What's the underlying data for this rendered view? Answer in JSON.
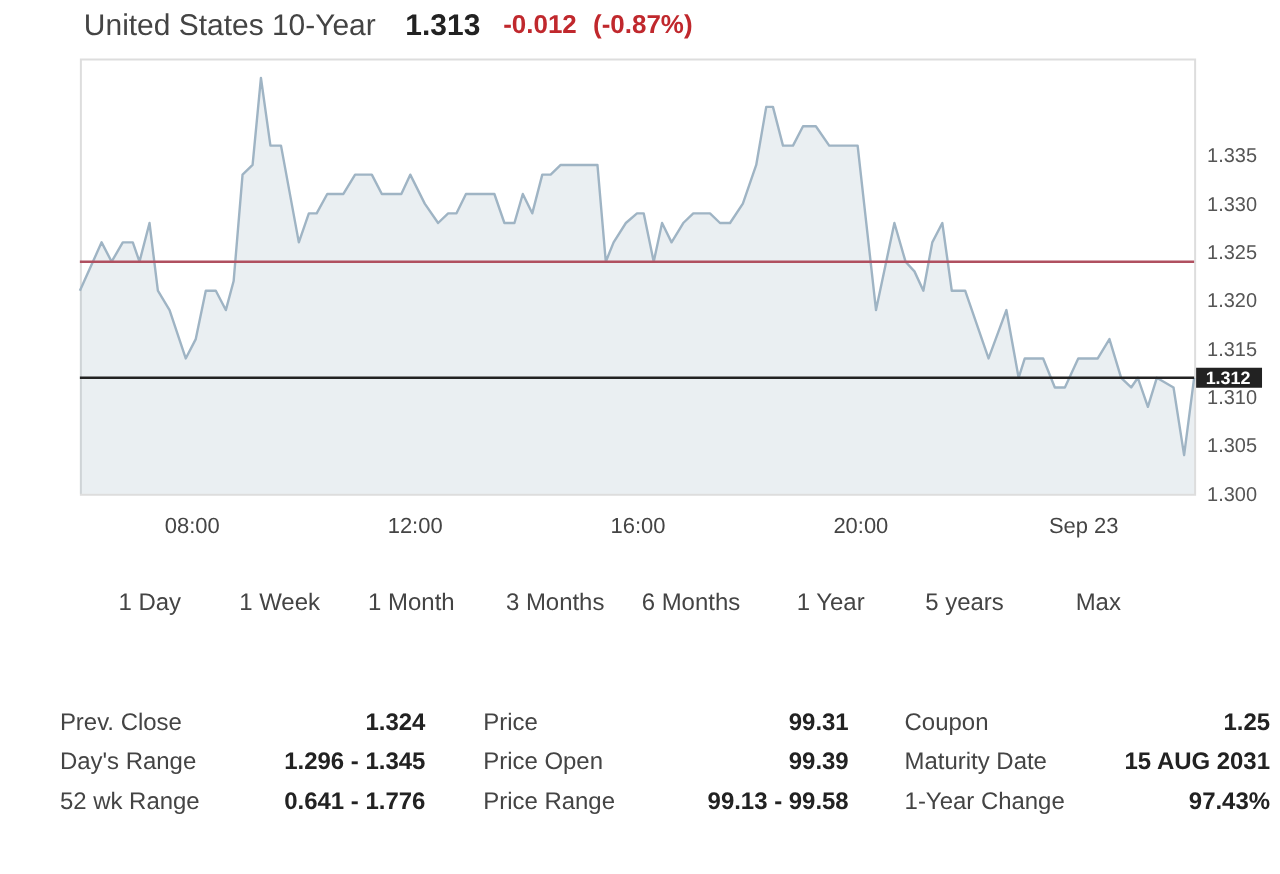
{
  "chart_data": {
    "type": "area",
    "title": "United States 10-Year",
    "x": [
      6.0,
      6.39,
      6.57,
      6.77,
      6.95,
      7.07,
      7.25,
      7.4,
      7.61,
      7.9,
      8.08,
      8.26,
      8.44,
      8.62,
      8.76,
      8.92,
      9.1,
      9.25,
      9.42,
      9.61,
      9.93,
      10.11,
      10.25,
      10.44,
      10.73,
      10.94,
      11.24,
      11.42,
      11.77,
      11.93,
      12.19,
      12.43,
      12.61,
      12.76,
      12.93,
      13.44,
      13.62,
      13.8,
      13.95,
      14.12,
      14.3,
      14.45,
      14.63,
      15.29,
      15.44,
      15.58,
      15.8,
      16.0,
      16.12,
      16.3,
      16.45,
      16.62,
      16.83,
      17.01,
      17.31,
      17.49,
      17.67,
      17.9,
      18.14,
      18.32,
      18.44,
      18.62,
      18.8,
      18.98,
      19.21,
      19.45,
      19.96,
      20.29,
      20.62,
      20.82,
      20.98,
      21.14,
      21.3,
      21.48,
      21.65,
      21.89,
      22.31,
      22.63,
      22.85,
      22.96,
      23.29,
      23.5,
      23.68,
      23.92,
      24.27,
      24.48,
      24.69,
      24.87,
      24.99,
      25.17,
      25.33,
      25.63,
      25.82,
      26.0
    ],
    "series": [
      {
        "color": "#9fb4c4",
        "values": [
          1.321,
          1.326,
          1.324,
          1.326,
          1.326,
          1.324,
          1.328,
          1.321,
          1.319,
          1.314,
          1.316,
          1.321,
          1.321,
          1.319,
          1.322,
          1.333,
          1.334,
          1.343,
          1.336,
          1.336,
          1.326,
          1.329,
          1.329,
          1.331,
          1.331,
          1.333,
          1.333,
          1.331,
          1.331,
          1.333,
          1.33,
          1.328,
          1.329,
          1.329,
          1.331,
          1.331,
          1.328,
          1.328,
          1.331,
          1.329,
          1.333,
          1.333,
          1.334,
          1.334,
          1.324,
          1.326,
          1.328,
          1.329,
          1.329,
          1.324,
          1.328,
          1.326,
          1.328,
          1.329,
          1.329,
          1.328,
          1.328,
          1.33,
          1.334,
          1.34,
          1.34,
          1.336,
          1.336,
          1.338,
          1.338,
          1.336,
          1.336,
          1.319,
          1.328,
          1.324,
          1.323,
          1.321,
          1.326,
          1.328,
          1.321,
          1.321,
          1.314,
          1.319,
          1.312,
          1.314,
          1.314,
          1.311,
          1.311,
          1.314,
          1.314,
          1.316,
          1.312,
          1.311,
          1.312,
          1.309,
          1.312,
          1.311,
          1.304,
          1.312
        ]
      }
    ],
    "xlim": [
      6,
      26
    ],
    "xticks": [
      {
        "value": 8,
        "label": "08:00"
      },
      {
        "value": 12,
        "label": "12:00"
      },
      {
        "value": 16,
        "label": "16:00"
      },
      {
        "value": 20,
        "label": "20:00"
      },
      {
        "value": 24,
        "label": "Sep 23"
      }
    ],
    "ylim": [
      1.3,
      1.345
    ],
    "yticks": [
      {
        "value": 1.3,
        "label": "1.300"
      },
      {
        "value": 1.305,
        "label": "1.305"
      },
      {
        "value": 1.31,
        "label": "1.310"
      },
      {
        "value": 1.315,
        "label": "1.315"
      },
      {
        "value": 1.32,
        "label": "1.320"
      },
      {
        "value": 1.325,
        "label": "1.325"
      },
      {
        "value": 1.33,
        "label": "1.330"
      },
      {
        "value": 1.335,
        "label": "1.335"
      }
    ],
    "grid": false,
    "ref_lines": [
      {
        "axis": "y",
        "value": 1.324,
        "color": "#b05060"
      },
      {
        "axis": "y",
        "value": 1.312,
        "label": "1.312",
        "color": "#222222"
      }
    ],
    "annotations": [
      "1.313",
      "-0.012",
      "(-0.87%)",
      "1 Day",
      "1 Week",
      "1 Month",
      "3 Months",
      "6 Months",
      "1 Year",
      "5 years",
      "Max",
      "Prev. Close",
      "1.324",
      "Day's Range",
      "1.296 - 1.345",
      "52 wk Range",
      "0.641 - 1.776",
      "Price",
      "99.31",
      "Price Open",
      "99.39",
      "Price Range",
      "99.13 - 99.58",
      "Coupon",
      "1.25",
      "Maturity Date",
      "15 AUG 2031",
      "1-Year Change",
      "97.43%"
    ]
  }
}
